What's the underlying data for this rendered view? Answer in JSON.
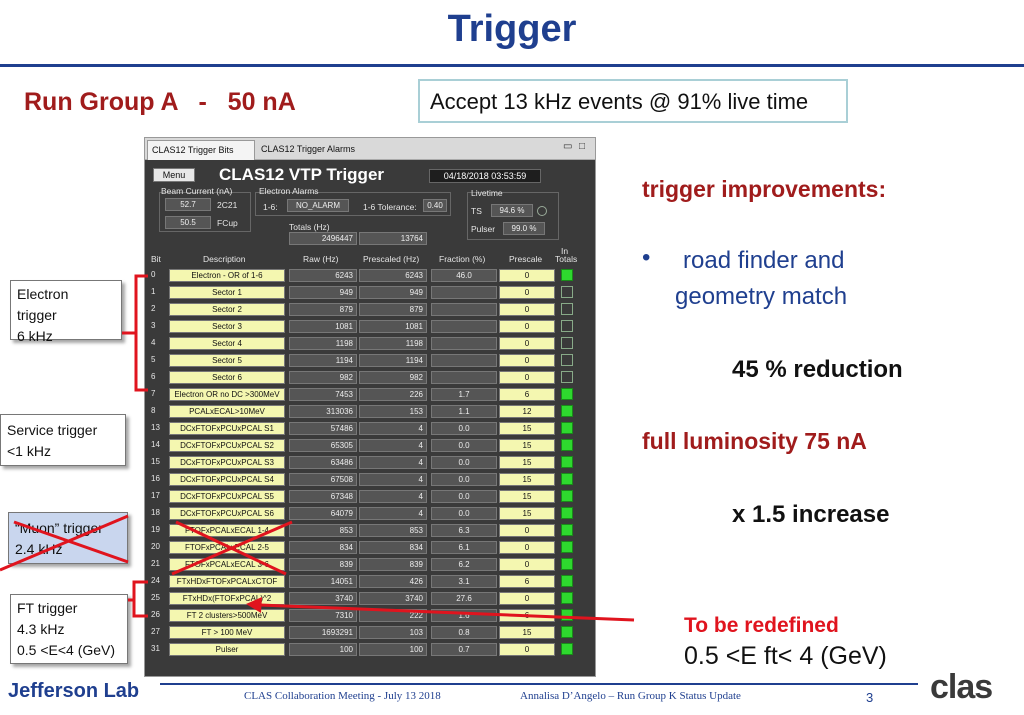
{
  "slide": {
    "title": "Trigger",
    "run_group": "Run Group A   -   50 nA",
    "accept_text": "Accept 13 kHz events @ 91% live time"
  },
  "app": {
    "tab1": "CLAS12 Trigger Bits",
    "tab2": "CLAS12 Trigger Alarms",
    "menu": "Menu",
    "title": "CLAS12 VTP Trigger",
    "datetime": "04/18/2018 03:53:59",
    "beam_current_label": "Beam Current (nA)",
    "beam_2c21_value": "52.7",
    "beam_2c21_label": "2C21",
    "beam_fcup_value": "50.5",
    "beam_fcup_label": "FCup",
    "alarms_label": "Electron Alarms",
    "alarms_16_label": "1-6:",
    "alarms_16_value": "NO_ALARM",
    "tolerance_label": "1-6 Tolerance:",
    "tolerance_value": "0.40",
    "totals_label": "Totals (Hz)",
    "totals_raw": "2496447",
    "totals_prescaled": "13764",
    "livetime_label": "Livetime",
    "ts_label": "TS",
    "ts_value": "94.6 %",
    "pulser_label": "Pulser",
    "pulser_value": "99.0 %",
    "headers": {
      "bit": "Bit",
      "description": "Description",
      "raw": "Raw (Hz)",
      "prescaled": "Prescaled (Hz)",
      "fraction": "Fraction (%)",
      "prescale": "Prescale",
      "in_totals_1": "In",
      "in_totals_2": "Totals"
    },
    "rows": [
      {
        "bit": "0",
        "desc": "Electron - OR of 1-6",
        "raw": "6243",
        "pre": "6243",
        "frac": "46.0",
        "psc": "0",
        "on": true
      },
      {
        "bit": "1",
        "desc": "Sector 1",
        "raw": "949",
        "pre": "949",
        "frac": "",
        "psc": "0",
        "on": false
      },
      {
        "bit": "2",
        "desc": "Sector 2",
        "raw": "879",
        "pre": "879",
        "frac": "",
        "psc": "0",
        "on": false
      },
      {
        "bit": "3",
        "desc": "Sector 3",
        "raw": "1081",
        "pre": "1081",
        "frac": "",
        "psc": "0",
        "on": false
      },
      {
        "bit": "4",
        "desc": "Sector 4",
        "raw": "1198",
        "pre": "1198",
        "frac": "",
        "psc": "0",
        "on": false
      },
      {
        "bit": "5",
        "desc": "Sector 5",
        "raw": "1194",
        "pre": "1194",
        "frac": "",
        "psc": "0",
        "on": false
      },
      {
        "bit": "6",
        "desc": "Sector 6",
        "raw": "982",
        "pre": "982",
        "frac": "",
        "psc": "0",
        "on": false
      },
      {
        "bit": "7",
        "desc": "Electron OR no DC >300MeV",
        "raw": "7453",
        "pre": "226",
        "frac": "1.7",
        "psc": "6",
        "on": true
      },
      {
        "bit": "8",
        "desc": "PCALxECAL>10MeV",
        "raw": "313036",
        "pre": "153",
        "frac": "1.1",
        "psc": "12",
        "on": true
      },
      {
        "bit": "13",
        "desc": "DCxFTOFxPCUxPCAL S1",
        "raw": "57486",
        "pre": "4",
        "frac": "0.0",
        "psc": "15",
        "on": true
      },
      {
        "bit": "14",
        "desc": "DCxFTOFxPCUxPCAL S2",
        "raw": "65305",
        "pre": "4",
        "frac": "0.0",
        "psc": "15",
        "on": true
      },
      {
        "bit": "15",
        "desc": "DCxFTOFxPCUxPCAL S3",
        "raw": "63486",
        "pre": "4",
        "frac": "0.0",
        "psc": "15",
        "on": true
      },
      {
        "bit": "16",
        "desc": "DCxFTOFxPCUxPCAL S4",
        "raw": "67508",
        "pre": "4",
        "frac": "0.0",
        "psc": "15",
        "on": true
      },
      {
        "bit": "17",
        "desc": "DCxFTOFxPCUxPCAL S5",
        "raw": "67348",
        "pre": "4",
        "frac": "0.0",
        "psc": "15",
        "on": true
      },
      {
        "bit": "18",
        "desc": "DCxFTOFxPCUxPCAL S6",
        "raw": "64079",
        "pre": "4",
        "frac": "0.0",
        "psc": "15",
        "on": true
      },
      {
        "bit": "19",
        "desc": "FTOFxPCALxECAL 1-4",
        "raw": "853",
        "pre": "853",
        "frac": "6.3",
        "psc": "0",
        "on": true
      },
      {
        "bit": "20",
        "desc": "FTOFxPCALxECAL 2-5",
        "raw": "834",
        "pre": "834",
        "frac": "6.1",
        "psc": "0",
        "on": true
      },
      {
        "bit": "21",
        "desc": "FTOFxPCALxECAL 3-6",
        "raw": "839",
        "pre": "839",
        "frac": "6.2",
        "psc": "0",
        "on": true
      },
      {
        "bit": "24",
        "desc": "FTxHDxFTOFxPCALxCTOF",
        "raw": "14051",
        "pre": "426",
        "frac": "3.1",
        "psc": "6",
        "on": true
      },
      {
        "bit": "25",
        "desc": "FTxHDx(FTOFxPCAL)^2",
        "raw": "3740",
        "pre": "3740",
        "frac": "27.6",
        "psc": "0",
        "on": true
      },
      {
        "bit": "26",
        "desc": "FT 2 clusters>500MeV",
        "raw": "7310",
        "pre": "222",
        "frac": "1.6",
        "psc": "6",
        "on": true
      },
      {
        "bit": "27",
        "desc": "FT > 100 MeV",
        "raw": "1693291",
        "pre": "103",
        "frac": "0.8",
        "psc": "15",
        "on": true
      },
      {
        "bit": "31",
        "desc": "Pulser",
        "raw": "100",
        "pre": "100",
        "frac": "0.7",
        "psc": "0",
        "on": true
      }
    ]
  },
  "right": {
    "improvements": "trigger improvements:",
    "bullet": "•",
    "road_line1": "road finder and",
    "road_line2": "geometry match",
    "reduction": "45 % reduction",
    "full_lumi": "full luminosity 75 nA",
    "increase": "x 1.5 increase",
    "redefined": "To be redefined",
    "range": "0.5 <E ft< 4 (GeV)"
  },
  "left": {
    "electron": [
      "Electron",
      "trigger",
      "6 kHz"
    ],
    "service": [
      "Service trigger",
      "<1 kHz"
    ],
    "muon": [
      "“Muon” trigger",
      "2.4 kHz"
    ],
    "ft": [
      "FT trigger",
      "4.3 kHz",
      "0.5 <E<4 (GeV)"
    ]
  },
  "footer": {
    "lab": "Jefferson Lab",
    "meeting": "CLAS Collaboration Meeting  - July 13  2018",
    "author": "Annalisa D’Angelo – Run Group K Status Update",
    "page": "3",
    "logo": "clas"
  },
  "colors": {
    "title_blue": "#1f3f8f",
    "dark_red": "#a01c1c",
    "bright_red": "#e0141e",
    "indicator_green": "#2ed82e"
  }
}
